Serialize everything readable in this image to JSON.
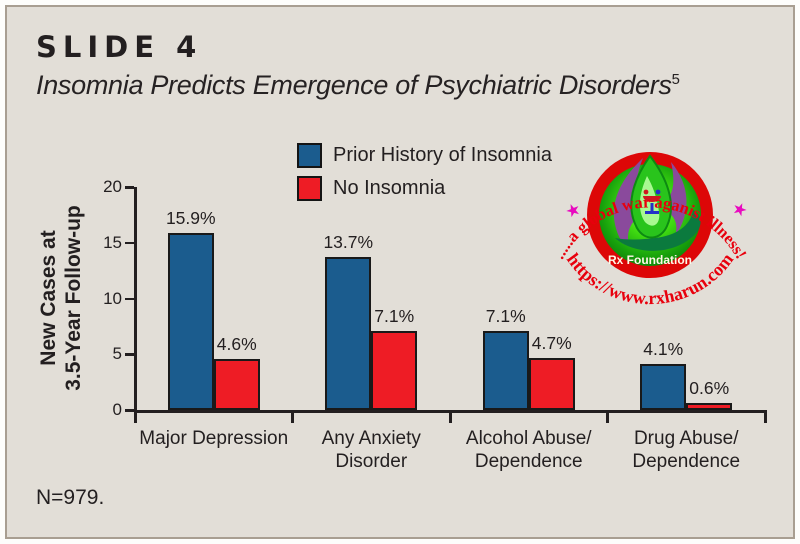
{
  "slide": {
    "label": "SLIDE 4",
    "title": "Insomnia Predicts Emergence of Psychiatric Disorders",
    "title_superscript": "5",
    "footnote": "N=979."
  },
  "watermark": {
    "arc_top": ".....a global war aganist illness!",
    "arc_bottom": "https://www.rxharun.com",
    "center_label": "Rx Foundation",
    "star": "★"
  },
  "colors": {
    "background": "#e2ded7",
    "panel_border": "#a89e91",
    "bar_blue": "#1b5c8e",
    "bar_red": "#ee1c25",
    "axis_black": "#231f20",
    "watermark_red": "#e8000d",
    "star_magenta": "#e80bbf"
  },
  "chart_data": {
    "type": "bar",
    "title": "Insomnia Predicts Emergence of Psychiatric Disorders",
    "xlabel": "",
    "ylabel": "New Cases at 3.5-Year Follow-up",
    "ylabel_lines": [
      "New Cases at",
      "3.5-Year Follow-up"
    ],
    "ylim": [
      0,
      20
    ],
    "yticks": [
      0,
      5,
      10,
      15,
      20
    ],
    "grid": false,
    "legend_position": "top-center",
    "categories": [
      "Major Depression",
      "Any Anxiety\nDisorder",
      "Alcohol Abuse/\nDependence",
      "Drug Abuse/\nDependence"
    ],
    "series": [
      {
        "name": "Prior History of Insomnia",
        "color": "#1b5c8e",
        "values": [
          15.9,
          13.7,
          7.1,
          4.1
        ],
        "value_labels": [
          "15.9%",
          "13.7%",
          "7.1%",
          "4.1%"
        ]
      },
      {
        "name": "No Insomnia",
        "color": "#ee1c25",
        "values": [
          4.6,
          7.1,
          4.7,
          0.6
        ],
        "value_labels": [
          "4.6%",
          "7.1%",
          "4.7%",
          "0.6%"
        ]
      }
    ]
  }
}
